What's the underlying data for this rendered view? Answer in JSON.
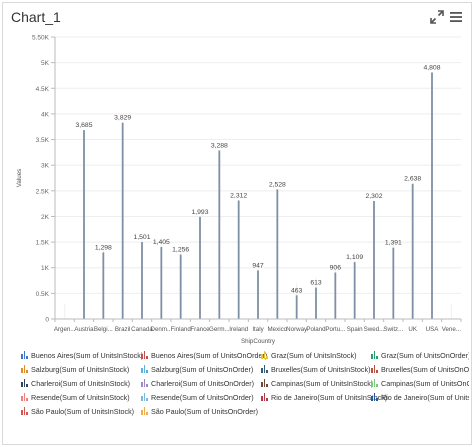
{
  "header": {
    "title": "Chart_1"
  },
  "icons": {
    "expand": "expand-icon",
    "menu": "hamburger-menu-icon"
  },
  "chart_data": {
    "type": "bar",
    "categories": [
      "Argen...",
      "Austria",
      "Belgi...",
      "Brazil",
      "Canada",
      "Denm...",
      "Finland",
      "France",
      "Germ...",
      "Ireland",
      "Italy",
      "Mexico",
      "Norway",
      "Poland",
      "Portu...",
      "Spain",
      "Swed...",
      "Switz...",
      "UK",
      "USA",
      "Vene..."
    ],
    "values": [
      0,
      3685,
      1298,
      3829,
      1501,
      1405,
      1256,
      1993,
      3288,
      2312,
      947,
      2528,
      463,
      613,
      906,
      1109,
      2302,
      1391,
      2638,
      4808,
      0
    ],
    "data_labels": [
      "",
      "3,685",
      "1,298",
      "3,829",
      "1,501",
      "1,405",
      "1,256",
      "1,993",
      "3,288",
      "2,312",
      "947",
      "2,528",
      "463",
      "613",
      "906",
      "1,109",
      "2,302",
      "1,391",
      "2,638",
      "4,808",
      ""
    ],
    "title": "",
    "xlabel": "ShipCountry",
    "ylabel": "Values",
    "ylim": [
      0,
      5500
    ],
    "yticks": [
      0,
      500,
      1000,
      1500,
      2000,
      2500,
      3000,
      3500,
      4000,
      4500,
      5000,
      5500
    ],
    "ytick_labels": [
      "0",
      "0.5K",
      "1K",
      "1.5K",
      "2K",
      "2.5K",
      "3K",
      "3.5K",
      "4K",
      "4.5K",
      "5K",
      "5.50K"
    ],
    "grid": true,
    "legend_position": "bottom",
    "legend": [
      {
        "label": "Buenos Aires(Sum of UnitsInStock)",
        "color": "#4472c4"
      },
      {
        "label": "Buenos Aires(Sum of UnitsOnOrder)",
        "color": "#c0504d"
      },
      {
        "label": "Graz(Sum of UnitsInStock)",
        "color": "#e8c43a"
      },
      {
        "label": "Graz(Sum of UnitsOnOrder)",
        "color": "#2e9e6e"
      },
      {
        "label": "Salzburg(Sum of UnitsInStock)",
        "color": "#e08c2c"
      },
      {
        "label": "Salzburg(Sum of UnitsOnOrder)",
        "color": "#5bb0de"
      },
      {
        "label": "Bruxelles(Sum of UnitsInStock)",
        "color": "#355b7a"
      },
      {
        "label": "Bruxelles(Sum of UnitsOnOrder)",
        "color": "#b5533c"
      },
      {
        "label": "Charleroi(Sum of UnitsInStock)",
        "color": "#33415c"
      },
      {
        "label": "Charleroi(Sum of UnitsOnOrder)",
        "color": "#9a8cc2"
      },
      {
        "label": "Campinas(Sum of UnitsInStock)",
        "color": "#6b4a3a"
      },
      {
        "label": "Campinas(Sum of UnitsOnOrder)",
        "color": "#7fc97f"
      },
      {
        "label": "Resende(Sum of UnitsInStock)",
        "color": "#f08080"
      },
      {
        "label": "Resende(Sum of UnitsOnOrder)",
        "color": "#7ab8e0"
      },
      {
        "label": "Rio de Janeiro(Sum of UnitsInStock)",
        "color": "#b03a48"
      },
      {
        "label": "Rio de Janeiro(Sum of UnitsOnOrder)",
        "color": "#2b5797"
      },
      {
        "label": "São Paulo(Sum of UnitsInStock)",
        "color": "#d9534f"
      },
      {
        "label": "São Paulo(Sum of UnitsOnOrder)",
        "color": "#f0ad4e"
      }
    ]
  }
}
